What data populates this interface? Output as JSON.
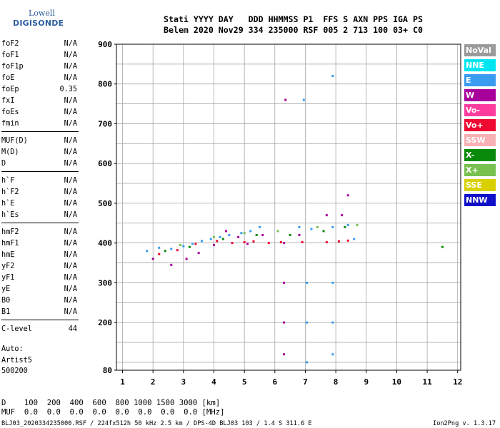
{
  "logo": {
    "line1": "Lowell",
    "line2": "DIGISONDE"
  },
  "header": {
    "row1": "Stati YYYY DAY   DDD HHMMSS P1  FFS S AXN PPS IGA PS",
    "row2": "Belem 2020 Nov29 334 235000 RSF 005 2 713 100 03+ C0"
  },
  "params": [
    {
      "label": "foF2",
      "value": "N/A"
    },
    {
      "label": "foF1",
      "value": "N/A"
    },
    {
      "label": "foF1p",
      "value": "N/A"
    },
    {
      "label": "foE",
      "value": "N/A"
    },
    {
      "label": "foEp",
      "value": "0.35"
    },
    {
      "label": "fxI",
      "value": "N/A"
    },
    {
      "label": "foEs",
      "value": "N/A"
    },
    {
      "label": "fmin",
      "value": "N/A"
    },
    {
      "label": "MUF(D)",
      "value": "N/A"
    },
    {
      "label": "M(D)",
      "value": "N/A"
    },
    {
      "label": "D",
      "value": "N/A"
    },
    {
      "label": "h`F",
      "value": "N/A"
    },
    {
      "label": "h`F2",
      "value": "N/A"
    },
    {
      "label": "h`E",
      "value": "N/A"
    },
    {
      "label": "h`Es",
      "value": "N/A"
    },
    {
      "label": "hmF2",
      "value": "N/A"
    },
    {
      "label": "hmF1",
      "value": "N/A"
    },
    {
      "label": "hmE",
      "value": "N/A"
    },
    {
      "label": "yF2",
      "value": "N/A"
    },
    {
      "label": "yF1",
      "value": "N/A"
    },
    {
      "label": "yE",
      "value": "N/A"
    },
    {
      "label": "B0",
      "value": "N/A"
    },
    {
      "label": "B1",
      "value": "N/A"
    },
    {
      "label": "C-level",
      "value": "44"
    }
  ],
  "auto": {
    "line1": "Auto:",
    "line2": "Artist5",
    "line3": "500200"
  },
  "dmuf": {
    "d_row": "D    100  200  400  600  800 1000 1500 3000 [km]",
    "muf_row": "MUF  0.0  0.0  0.0  0.0  0.0  0.0  0.0  0.0 [MHz]"
  },
  "footer": "BLJ03_2020334235000.RSF / 224fx512h 50 kHz 2.5 km / DPS-4D BLJ03 103 / 1.4 S 311.6 E",
  "version": "Ion2Png v. 1.3.17",
  "legend": [
    {
      "label": "NoVal",
      "color": "#9a9a9a",
      "text_color": "#ffffff"
    },
    {
      "label": "NNE",
      "color": "#00e6f0",
      "text_color": "#ffffff"
    },
    {
      "label": "E",
      "color": "#3a9cf0",
      "text_color": "#ffffff"
    },
    {
      "label": "W",
      "color": "#a8009a",
      "text_color": "#ffffff"
    },
    {
      "label": "Vo-",
      "color": "#ff3d9e",
      "text_color": "#ffffff"
    },
    {
      "label": "Vo+",
      "color": "#ee0a30",
      "text_color": "#ffffff"
    },
    {
      "label": "SSW",
      "color": "#f8b0b4",
      "text_color": "#ffffff"
    },
    {
      "label": "X-",
      "color": "#0a8a0a",
      "text_color": "#ffffff"
    },
    {
      "label": "X+",
      "color": "#78c050",
      "text_color": "#ffffff"
    },
    {
      "label": "SSE",
      "color": "#d8d000",
      "text_color": "#ffffff"
    },
    {
      "label": "NNW",
      "color": "#1010c8",
      "text_color": "#ffffff"
    }
  ],
  "chart_data": {
    "type": "scatter",
    "title": "",
    "xlabel": "",
    "ylabel": "",
    "xlim": [
      0.8,
      12.1
    ],
    "ylim": [
      80,
      900
    ],
    "x_ticks": [
      1,
      2,
      3,
      4,
      5,
      6,
      7,
      8,
      9,
      10,
      11,
      12
    ],
    "y_ticks": [
      80,
      200,
      300,
      400,
      500,
      600,
      700,
      800,
      900
    ],
    "grid": true,
    "series": [
      {
        "name": "E",
        "color": "#3a9cf0",
        "points": [
          [
            1.8,
            380
          ],
          [
            2.2,
            388
          ],
          [
            2.6,
            385
          ],
          [
            3.0,
            392
          ],
          [
            3.3,
            398
          ],
          [
            3.6,
            405
          ],
          [
            3.9,
            410
          ],
          [
            4.2,
            415
          ],
          [
            4.5,
            420
          ],
          [
            4.9,
            425
          ],
          [
            5.2,
            430
          ],
          [
            5.5,
            440
          ],
          [
            6.8,
            440
          ],
          [
            7.2,
            435
          ],
          [
            7.9,
            440
          ],
          [
            8.4,
            445
          ],
          [
            8.6,
            410
          ],
          [
            7.05,
            300
          ],
          [
            7.05,
            200
          ],
          [
            7.05,
            100
          ],
          [
            7.9,
            300
          ],
          [
            7.9,
            200
          ],
          [
            7.9,
            120
          ],
          [
            6.95,
            760
          ],
          [
            7.9,
            820
          ]
        ]
      },
      {
        "name": "W",
        "color": "#a8009a",
        "points": [
          [
            2.0,
            360
          ],
          [
            2.6,
            345
          ],
          [
            3.1,
            360
          ],
          [
            3.5,
            375
          ],
          [
            4.0,
            395
          ],
          [
            4.4,
            430
          ],
          [
            4.8,
            415
          ],
          [
            5.1,
            398
          ],
          [
            5.6,
            420
          ],
          [
            6.3,
            400
          ],
          [
            6.3,
            300
          ],
          [
            6.3,
            200
          ],
          [
            6.3,
            120
          ],
          [
            6.35,
            760
          ],
          [
            6.8,
            420
          ],
          [
            7.7,
            470
          ],
          [
            8.2,
            470
          ],
          [
            8.4,
            520
          ]
        ]
      },
      {
        "name": "Vo+",
        "color": "#ee0a30",
        "points": [
          [
            2.2,
            372
          ],
          [
            2.8,
            382
          ],
          [
            3.4,
            398
          ],
          [
            4.1,
            405
          ],
          [
            4.6,
            400
          ],
          [
            5.0,
            402
          ],
          [
            5.3,
            404
          ],
          [
            5.8,
            400
          ],
          [
            6.2,
            402
          ],
          [
            6.9,
            402
          ],
          [
            7.7,
            402
          ],
          [
            8.1,
            404
          ],
          [
            8.4,
            406
          ]
        ]
      },
      {
        "name": "X-",
        "color": "#0a8a0a",
        "points": [
          [
            2.4,
            380
          ],
          [
            3.2,
            390
          ],
          [
            4.3,
            410
          ],
          [
            5.4,
            420
          ],
          [
            6.5,
            420
          ],
          [
            7.6,
            430
          ],
          [
            8.3,
            440
          ],
          [
            11.5,
            390
          ]
        ]
      },
      {
        "name": "X+",
        "color": "#78c050",
        "points": [
          [
            2.9,
            395
          ],
          [
            4.0,
            415
          ],
          [
            5.0,
            425
          ],
          [
            6.1,
            430
          ],
          [
            7.4,
            440
          ],
          [
            8.7,
            445
          ]
        ]
      }
    ]
  }
}
